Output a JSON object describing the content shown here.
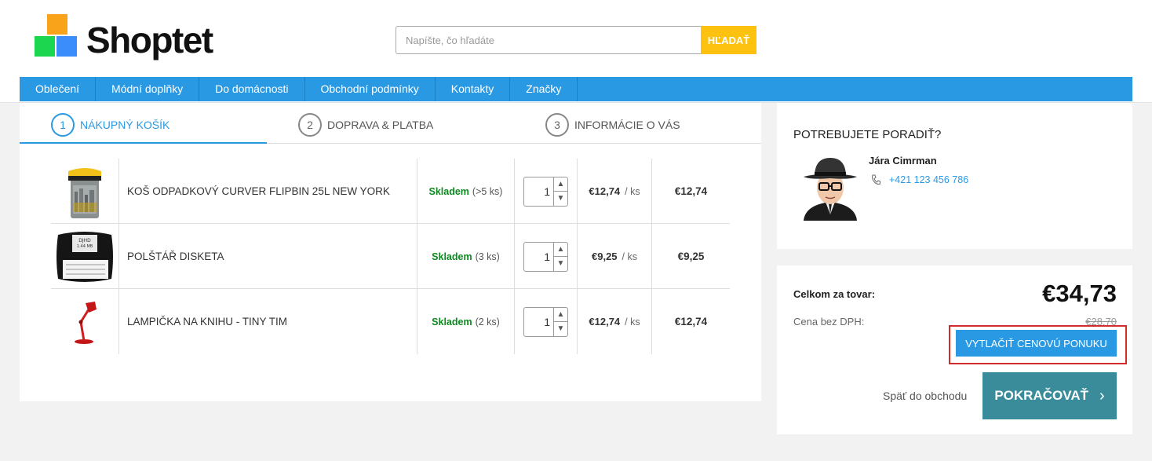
{
  "brand": {
    "name": "Shoptet"
  },
  "search": {
    "placeholder": "Napíšte, čo hľadáte",
    "button_label": "HĽADAŤ"
  },
  "nav": {
    "items": [
      "Oblečení",
      "Módní doplňky",
      "Do domácnosti",
      "Obchodní podmínky",
      "Kontakty",
      "Značky"
    ]
  },
  "steps": [
    {
      "num": "1",
      "label": "NÁKUPNÝ KOŠÍK",
      "active": true
    },
    {
      "num": "2",
      "label": "DOPRAVA & PLATBA",
      "active": false
    },
    {
      "num": "3",
      "label": "INFORMÁCIE O VÁS",
      "active": false
    }
  ],
  "cart": {
    "items": [
      {
        "image": "trash-bin-image",
        "name": "KOŠ ODPADKOVÝ CURVER FLIPBIN 25L NEW YORK",
        "stock_status": "Skladem",
        "stock_qty": "(>5 ks)",
        "quantity": "1",
        "unit_price": "€12,74",
        "unit": "/ ks",
        "total": "€12,74"
      },
      {
        "image": "floppy-pillow-image",
        "name": "POLŠTÁŘ DISKETA",
        "stock_status": "Skladem",
        "stock_qty": "(3 ks)",
        "quantity": "1",
        "unit_price": "€9,25",
        "unit": "/ ks",
        "total": "€9,25"
      },
      {
        "image": "red-lamp-image",
        "name": "LAMPIČKA NA KNIHU - TINY TIM",
        "stock_status": "Skladem",
        "stock_qty": "(2 ks)",
        "quantity": "1",
        "unit_price": "€12,74",
        "unit": "/ ks",
        "total": "€12,74"
      }
    ]
  },
  "advisor": {
    "title": "POTREBUJETE PORADIŤ?",
    "name": "Jára Cimrman",
    "phone": "+421 123 456 786"
  },
  "summary": {
    "total_label": "Celkom za tovar:",
    "total_value": "€34,73",
    "vat_label": "Cena bez DPH:",
    "vat_value": "€28,70",
    "print_button": "VYTLAČIŤ CENOVÚ PONUKU",
    "back_link": "Späť do obchodu",
    "continue_button": "POKRAČOVAŤ"
  },
  "colors": {
    "accent": "#2a99e4",
    "search_button": "#fdc20f",
    "continue": "#3b8c9a",
    "stock": "#0e8a20",
    "highlight": "#d32a2a"
  }
}
